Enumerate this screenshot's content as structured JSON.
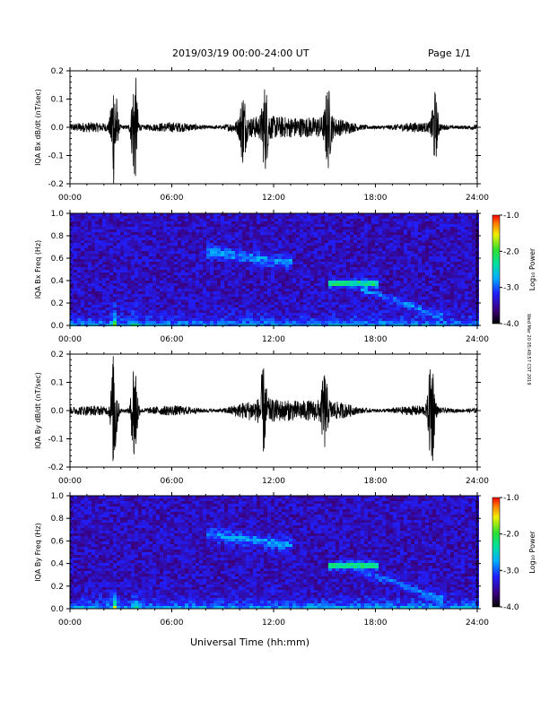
{
  "header": {
    "title": "2019/03/19   00:00-24:00 UT",
    "page": "Page 1/1"
  },
  "footer": {
    "xlabel": "Universal Time (hh:mm)",
    "side_note": "Wed Mar 20 05:48:57 CST 2019"
  },
  "chart_data": [
    {
      "type": "line",
      "ylabel": "IQA Bx dB/dt (nT/sec)",
      "ylim": [
        -0.2,
        0.2
      ],
      "yticks": [
        "0.2",
        "0.1",
        "0.0",
        "-0.1",
        "-0.2"
      ],
      "xticks": [
        "00:00",
        "06:00",
        "12:00",
        "18:00",
        "24:00"
      ],
      "xlim_hours": [
        0,
        24
      ],
      "bursts": [
        {
          "t": 2.6,
          "amp": 0.21
        },
        {
          "t": 3.8,
          "amp": 0.21
        },
        {
          "t": 10.2,
          "amp": 0.11
        },
        {
          "t": 11.5,
          "amp": 0.12
        },
        {
          "t": 15.2,
          "amp": 0.12
        },
        {
          "t": 21.5,
          "amp": 0.12
        }
      ]
    },
    {
      "type": "heatmap",
      "ylabel": "IQA Bx Freq (Hz)",
      "ylim": [
        0.0,
        1.0
      ],
      "yticks": [
        "1.0",
        "0.8",
        "0.6",
        "0.4",
        "0.2",
        "0.0"
      ],
      "xticks": [
        "00:00",
        "06:00",
        "12:00",
        "18:00",
        "24:00"
      ],
      "colorbar": {
        "label": "Log₁₀ Power",
        "range": [
          -4.0,
          -1.0
        ],
        "ticks": [
          "-1.0",
          "-2.0",
          "-3.0",
          "-4.0"
        ]
      }
    },
    {
      "type": "line",
      "ylabel": "IQA By dB/dt (nT/sec)",
      "ylim": [
        -0.2,
        0.2
      ],
      "yticks": [
        "0.2",
        "0.1",
        "0.0",
        "-0.1",
        "-0.2"
      ],
      "xticks": [
        "00:00",
        "06:00",
        "12:00",
        "18:00",
        "24:00"
      ],
      "xlim_hours": [
        0,
        24
      ],
      "bursts": [
        {
          "t": 2.6,
          "amp": 0.21
        },
        {
          "t": 3.8,
          "amp": 0.21
        },
        {
          "t": 11.4,
          "amp": 0.12
        },
        {
          "t": 15.0,
          "amp": 0.11
        },
        {
          "t": 21.3,
          "amp": 0.21
        }
      ]
    },
    {
      "type": "heatmap",
      "ylabel": "IQA By Freq (Hz)",
      "ylim": [
        0.0,
        1.0
      ],
      "yticks": [
        "1.0",
        "0.8",
        "0.6",
        "0.4",
        "0.2",
        "0.0"
      ],
      "xticks": [
        "00:00",
        "06:00",
        "12:00",
        "18:00",
        "24:00"
      ],
      "colorbar": {
        "label": "Log₁₀ Power",
        "range": [
          -4.0,
          -1.0
        ],
        "ticks": [
          "-1.0",
          "-2.0",
          "-3.0",
          "-4.0"
        ]
      }
    }
  ]
}
